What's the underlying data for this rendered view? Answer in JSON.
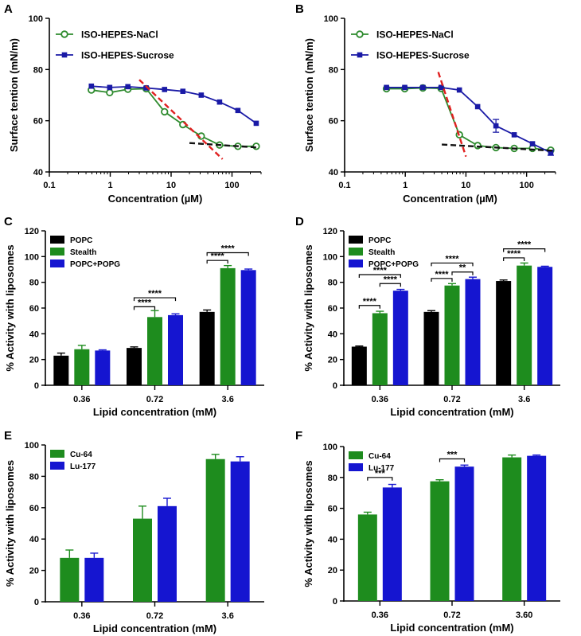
{
  "figure": {
    "panel_letters": [
      "A",
      "B",
      "C",
      "D",
      "E",
      "F"
    ]
  },
  "chart_data": [
    {
      "id": "A",
      "type": "line",
      "title": "",
      "xlabel": "Concentration (µM)",
      "ylabel": "Surface tention (mN/m)",
      "xscale": "log",
      "xlim": [
        0.1,
        300
      ],
      "ylim": [
        40,
        100
      ],
      "xticks": [
        0.1,
        1,
        10,
        100
      ],
      "xtick_labels": [
        "0.1",
        "1",
        "10",
        "100"
      ],
      "yticks": [
        40,
        60,
        80,
        100
      ],
      "ytick_labels": [
        "40",
        "60",
        "80",
        "100"
      ],
      "legend_position": "top-left",
      "series": [
        {
          "name": "ISO-HEPES-NaCl",
          "marker": "open-circle",
          "color": "#2e8b2e",
          "x": [
            0.49,
            0.98,
            1.95,
            3.9,
            7.8,
            15.6,
            31.25,
            62.5,
            125,
            250
          ],
          "y": [
            72.0,
            71.0,
            72.3,
            72.5,
            63.5,
            58.5,
            54.0,
            50.5,
            50.0,
            50.0
          ],
          "err": [
            0,
            0,
            0,
            0,
            0,
            0,
            0,
            0,
            0,
            0
          ]
        },
        {
          "name": "ISO-HEPES-Sucrose",
          "marker": "filled-square",
          "color": "#1a1aa6",
          "x": [
            0.49,
            0.98,
            1.95,
            3.9,
            7.8,
            15.6,
            31.25,
            62.5,
            125,
            250
          ],
          "y": [
            73.5,
            73.0,
            73.3,
            72.8,
            72.2,
            71.5,
            70.0,
            67.3,
            64.0,
            59.0
          ],
          "err": [
            0,
            0,
            0,
            0,
            0,
            0,
            0,
            0,
            0,
            0
          ]
        }
      ],
      "fit_lines": [
        {
          "color": "#e02020",
          "x": [
            3.0,
            70
          ],
          "y": [
            76.0,
            45.0
          ]
        },
        {
          "color": "#111111",
          "x": [
            20,
            280
          ],
          "y": [
            51.3,
            49.5
          ]
        }
      ]
    },
    {
      "id": "B",
      "type": "line",
      "title": "",
      "xlabel": "Concentration (µM)",
      "ylabel": "Surface tention (mN/m)",
      "xscale": "log",
      "xlim": [
        0.1,
        300
      ],
      "ylim": [
        40,
        100
      ],
      "xticks": [
        0.1,
        1,
        10,
        100
      ],
      "xtick_labels": [
        "0.1",
        "1",
        "10",
        "100"
      ],
      "yticks": [
        40,
        60,
        80,
        100
      ],
      "ytick_labels": [
        "40",
        "60",
        "80",
        "100"
      ],
      "legend_position": "top-left",
      "series": [
        {
          "name": "ISO-HEPES-NaCl",
          "marker": "open-circle",
          "color": "#2e8b2e",
          "x": [
            0.49,
            0.98,
            1.95,
            3.9,
            7.8,
            15.6,
            31.25,
            62.5,
            125,
            250
          ],
          "y": [
            72.5,
            72.5,
            72.8,
            72.6,
            54.5,
            50.3,
            49.5,
            49.2,
            49.2,
            48.5
          ],
          "err": [
            0,
            0,
            0,
            0,
            0,
            0,
            0,
            0,
            0,
            0
          ]
        },
        {
          "name": "ISO-HEPES-Sucrose",
          "marker": "filled-square",
          "color": "#1a1aa6",
          "x": [
            0.49,
            0.98,
            1.95,
            3.9,
            7.8,
            15.6,
            31.25,
            62.5,
            125,
            250
          ],
          "y": [
            73.0,
            73.0,
            73.0,
            73.0,
            72.0,
            65.5,
            58.0,
            54.5,
            51.0,
            47.5
          ],
          "err": [
            0,
            0,
            0,
            0,
            0,
            0,
            2.5,
            0,
            0,
            1.0
          ]
        }
      ],
      "fit_lines": [
        {
          "color": "#e02020",
          "x": [
            3.5,
            10.0
          ],
          "y": [
            79.0,
            46.0
          ]
        },
        {
          "color": "#111111",
          "x": [
            4.0,
            270
          ],
          "y": [
            50.7,
            48.3
          ]
        }
      ]
    },
    {
      "id": "C",
      "type": "bar",
      "title": "",
      "xlabel": "Lipid concentration (mM)",
      "ylabel": "% Activity with liposomes",
      "categories": [
        "0.36",
        "0.72",
        "3.6"
      ],
      "ylim": [
        0,
        120
      ],
      "yticks": [
        0,
        20,
        40,
        60,
        80,
        100,
        120
      ],
      "ytick_labels": [
        "0",
        "20",
        "40",
        "60",
        "80",
        "100",
        "120"
      ],
      "legend_position": "top-left",
      "series": [
        {
          "name": "POPC",
          "color": "#000000",
          "values": [
            23,
            29,
            57
          ],
          "err": [
            2,
            0.8,
            1.5
          ]
        },
        {
          "name": "Stealth",
          "color": "#1e8c1e",
          "values": [
            28,
            53,
            91
          ],
          "err": [
            3,
            5,
            2
          ]
        },
        {
          "name": "POPC+POPG",
          "color": "#1515d0",
          "values": [
            27,
            54.5,
            89.5
          ],
          "err": [
            0.5,
            1,
            0.8
          ]
        }
      ],
      "significance": [
        {
          "category": 1,
          "from": 0,
          "to": 1,
          "y": 61,
          "label": "****"
        },
        {
          "category": 1,
          "from": 0,
          "to": 2,
          "y": 68,
          "label": "****"
        },
        {
          "category": 2,
          "from": 0,
          "to": 1,
          "y": 97,
          "label": "****"
        },
        {
          "category": 2,
          "from": 0,
          "to": 2,
          "y": 103,
          "label": "****"
        }
      ]
    },
    {
      "id": "D",
      "type": "bar",
      "title": "",
      "xlabel": "Lipid concentration (mM)",
      "ylabel": "% Activity with liposomes",
      "categories": [
        "0.36",
        "0.72",
        "3.6"
      ],
      "ylim": [
        0,
        120
      ],
      "yticks": [
        0,
        20,
        40,
        60,
        80,
        100,
        120
      ],
      "ytick_labels": [
        "0",
        "20",
        "40",
        "60",
        "80",
        "100",
        "120"
      ],
      "legend_position": "top-left",
      "series": [
        {
          "name": "POPC",
          "color": "#000000",
          "values": [
            30,
            57,
            81
          ],
          "err": [
            0.5,
            1,
            0.8
          ]
        },
        {
          "name": "Stealth",
          "color": "#1e8c1e",
          "values": [
            56,
            77.5,
            93
          ],
          "err": [
            1.5,
            1.5,
            2
          ]
        },
        {
          "name": "POPC+POPG",
          "color": "#1515d0",
          "values": [
            73.5,
            82.5,
            92
          ],
          "err": [
            1,
            1.5,
            0.5
          ]
        }
      ],
      "significance": [
        {
          "category": 0,
          "from": 0,
          "to": 1,
          "y": 62,
          "label": "****"
        },
        {
          "category": 0,
          "from": 1,
          "to": 2,
          "y": 79,
          "label": "****"
        },
        {
          "category": 0,
          "from": 0,
          "to": 2,
          "y": 86,
          "label": "****"
        },
        {
          "category": 1,
          "from": 0,
          "to": 1,
          "y": 83,
          "label": "****"
        },
        {
          "category": 1,
          "from": 1,
          "to": 2,
          "y": 88,
          "label": "**"
        },
        {
          "category": 1,
          "from": 0,
          "to": 2,
          "y": 95,
          "label": "****"
        },
        {
          "category": 2,
          "from": 0,
          "to": 1,
          "y": 99,
          "label": "****"
        },
        {
          "category": 2,
          "from": 0,
          "to": 2,
          "y": 106,
          "label": "****"
        }
      ]
    },
    {
      "id": "E",
      "type": "bar",
      "title": "",
      "xlabel": "Lipid concentration (mM)",
      "ylabel": "% Activity with liposomes",
      "categories": [
        "0.36",
        "0.72",
        "3.6"
      ],
      "ylim": [
        0,
        100
      ],
      "yticks": [
        0,
        20,
        40,
        60,
        80,
        100
      ],
      "ytick_labels": [
        "0",
        "20",
        "40",
        "60",
        "80",
        "100"
      ],
      "legend_position": "top-left",
      "series": [
        {
          "name": "Cu-64",
          "color": "#1e8c1e",
          "values": [
            28,
            53,
            91
          ],
          "err": [
            5,
            8,
            3
          ]
        },
        {
          "name": "Lu-177",
          "color": "#1515d0",
          "values": [
            28,
            61,
            89.5
          ],
          "err": [
            3,
            5,
            3
          ]
        }
      ],
      "significance": []
    },
    {
      "id": "F",
      "type": "bar",
      "title": "",
      "xlabel": "Lipid concentration (mM)",
      "ylabel": "% Activity with liposomes",
      "categories": [
        "0.36",
        "0.72",
        "3.60"
      ],
      "ylim": [
        0,
        100
      ],
      "yticks": [
        0,
        20,
        40,
        60,
        80,
        100
      ],
      "ytick_labels": [
        "0",
        "20",
        "40",
        "60",
        "80",
        "100"
      ],
      "legend_position": "top-left",
      "series": [
        {
          "name": "Cu-64",
          "color": "#1e8c1e",
          "values": [
            56,
            77.5,
            93
          ],
          "err": [
            1.5,
            1,
            1.5
          ]
        },
        {
          "name": "Lu-177",
          "color": "#1515d0",
          "values": [
            73.5,
            87,
            94
          ],
          "err": [
            2,
            1,
            0.5
          ]
        }
      ],
      "significance": [
        {
          "category": 0,
          "from": 0,
          "to": 1,
          "y": 80,
          "label": "***"
        },
        {
          "category": 1,
          "from": 0,
          "to": 1,
          "y": 92,
          "label": "***"
        }
      ]
    }
  ]
}
